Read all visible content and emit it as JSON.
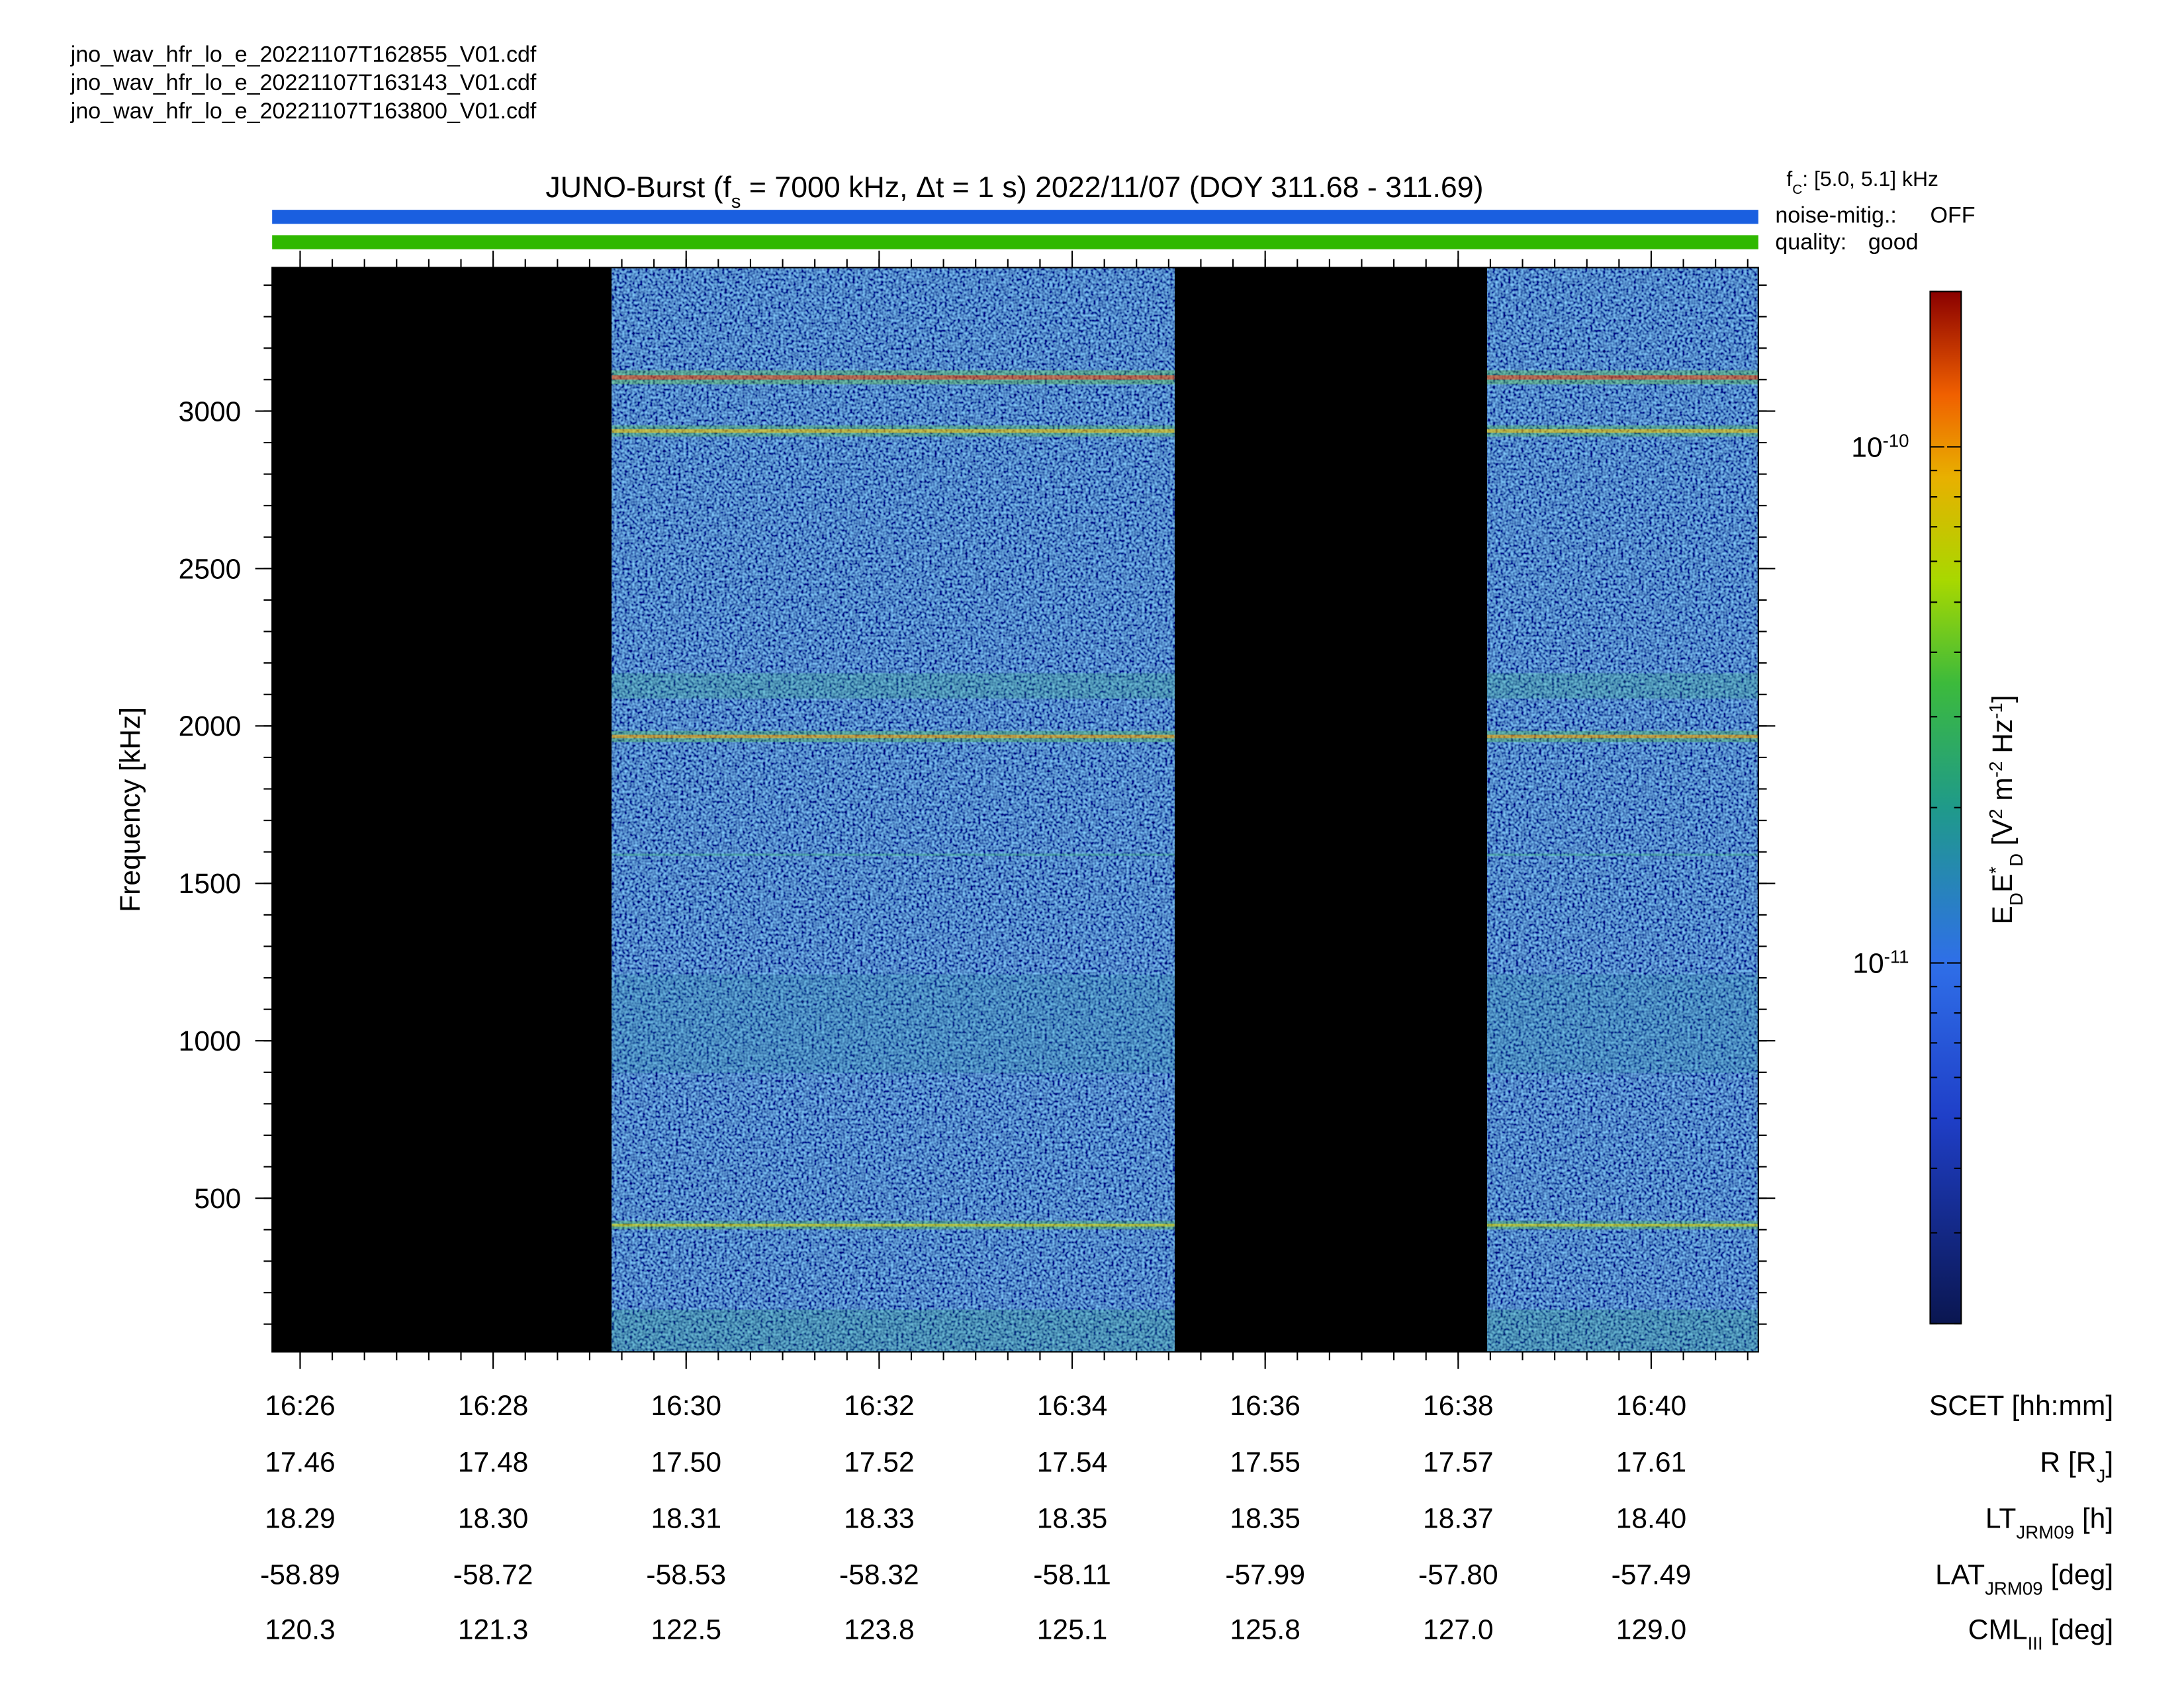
{
  "files": [
    "jno_wav_hfr_lo_e_20221107T162855_V01.cdf",
    "jno_wav_hfr_lo_e_20221107T163143_V01.cdf",
    "jno_wav_hfr_lo_e_20221107T163800_V01.cdf"
  ],
  "chart_data": {
    "type": "spectrogram",
    "title": [
      {
        "text": "JUNO-Burst (f"
      },
      {
        "sub": "s"
      },
      {
        "text": " = 7000 kHz, Δt = 1 s)  2022/11/07 (DOY 311.68 - 311.69)"
      }
    ],
    "filter_note": [
      {
        "text": "f"
      },
      {
        "sub": "C"
      },
      {
        "text": ": [5.0, 5.1] kHz"
      }
    ],
    "noise_mitigation": {
      "label": "noise-mitig.:",
      "value": "OFF",
      "color": "#1a5fe0"
    },
    "quality": {
      "label": "quality:",
      "value": "good",
      "color": "#2fb800"
    },
    "ylabel": "Frequency [kHz]",
    "ylim": [
      12,
      3456
    ],
    "yticks": [
      500,
      1000,
      1500,
      2000,
      2500,
      3000
    ],
    "xlim": [
      985.71,
      1001.11
    ],
    "xticks": [
      {
        "value": 986,
        "label": "16:26"
      },
      {
        "value": 988,
        "label": "16:28"
      },
      {
        "value": 990,
        "label": "16:30"
      },
      {
        "value": 992,
        "label": "16:32"
      },
      {
        "value": 994,
        "label": "16:34"
      },
      {
        "value": 996,
        "label": "16:36"
      },
      {
        "value": 998,
        "label": "16:38"
      },
      {
        "value": 1000,
        "label": "16:40"
      }
    ],
    "xlabel": "SCET [hh:mm]",
    "data_intervals": [
      [
        989.23,
        995.06
      ],
      [
        998.3,
        1001.11
      ]
    ],
    "ephemeris": [
      {
        "label": [
          {
            "text": "R [R"
          },
          {
            "sub": "J"
          },
          {
            "text": "]"
          }
        ],
        "values": [
          "17.46",
          "17.48",
          "17.50",
          "17.52",
          "17.54",
          "17.55",
          "17.57",
          "17.61"
        ]
      },
      {
        "label": [
          {
            "text": "LT"
          },
          {
            "sub": "JRM09"
          },
          {
            "text": " [h]"
          }
        ],
        "values": [
          "18.29",
          "18.30",
          "18.31",
          "18.33",
          "18.35",
          "18.35",
          "18.37",
          "18.40"
        ]
      },
      {
        "label": [
          {
            "text": "LAT"
          },
          {
            "sub": "JRM09"
          },
          {
            "text": " [deg]"
          }
        ],
        "values": [
          "-58.89",
          "-58.72",
          "-58.53",
          "-58.32",
          "-58.11",
          "-57.99",
          "-57.80",
          "-57.49"
        ]
      },
      {
        "label": [
          {
            "text": "CML"
          },
          {
            "sub": "III"
          },
          {
            "text": " [deg]"
          }
        ],
        "values": [
          "120.3",
          "121.3",
          "122.5",
          "123.8",
          "125.1",
          "125.8",
          "127.0",
          "129.0"
        ]
      }
    ],
    "zlim": [
      2e-12,
      2e-10
    ],
    "zscale": "log",
    "zticks": [
      {
        "value": 1e-10,
        "label": "10",
        "exponent": "-10"
      },
      {
        "value": 1e-11,
        "label": "10",
        "exponent": "-11"
      }
    ],
    "zlabel": [
      {
        "text": "E"
      },
      {
        "sub": "D"
      },
      {
        "text": "E"
      },
      {
        "sup": "*"
      },
      {
        "sub": "D"
      },
      {
        "text": "  [V"
      },
      {
        "sup": "2"
      },
      {
        "text": " m"
      },
      {
        "sup": "-2"
      },
      {
        "text": " Hz"
      },
      {
        "sup": "-1"
      },
      {
        "text": "]"
      }
    ]
  }
}
